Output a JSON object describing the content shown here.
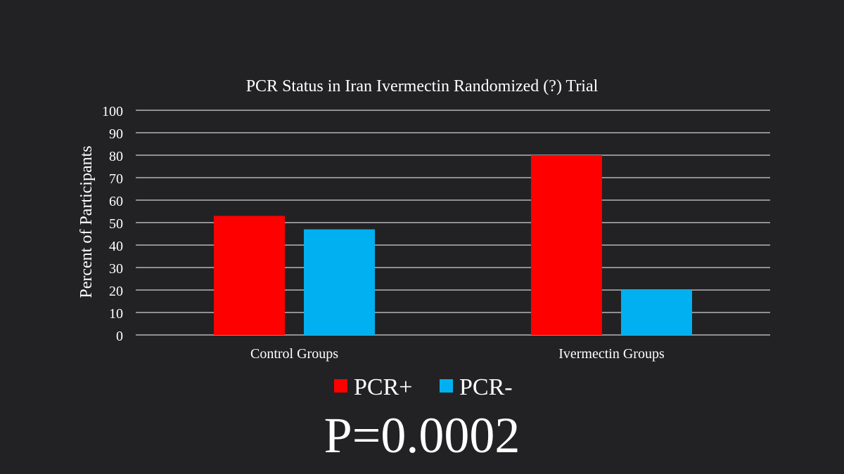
{
  "chart_data": {
    "type": "bar",
    "title": "PCR Status in Iran Ivermectin Randomized (?) Trial",
    "xlabel": "",
    "ylabel": "Percent of Participants",
    "categories": [
      "Control Groups",
      "Ivermectin Groups"
    ],
    "series": [
      {
        "name": "PCR+",
        "values": [
          53,
          80
        ],
        "color": "#ff0000"
      },
      {
        "name": "PCR-",
        "values": [
          47,
          20
        ],
        "color": "#00b0f0"
      }
    ],
    "ylim": [
      0,
      100
    ],
    "yticks": [
      0,
      10,
      20,
      30,
      40,
      50,
      60,
      70,
      80,
      90,
      100
    ],
    "grid": true,
    "legend_position": "bottom"
  },
  "annotation": {
    "p_value": "P=0.0002"
  },
  "colors": {
    "background": "#222224",
    "text": "#ffffff",
    "gridline": "#ffffff"
  }
}
